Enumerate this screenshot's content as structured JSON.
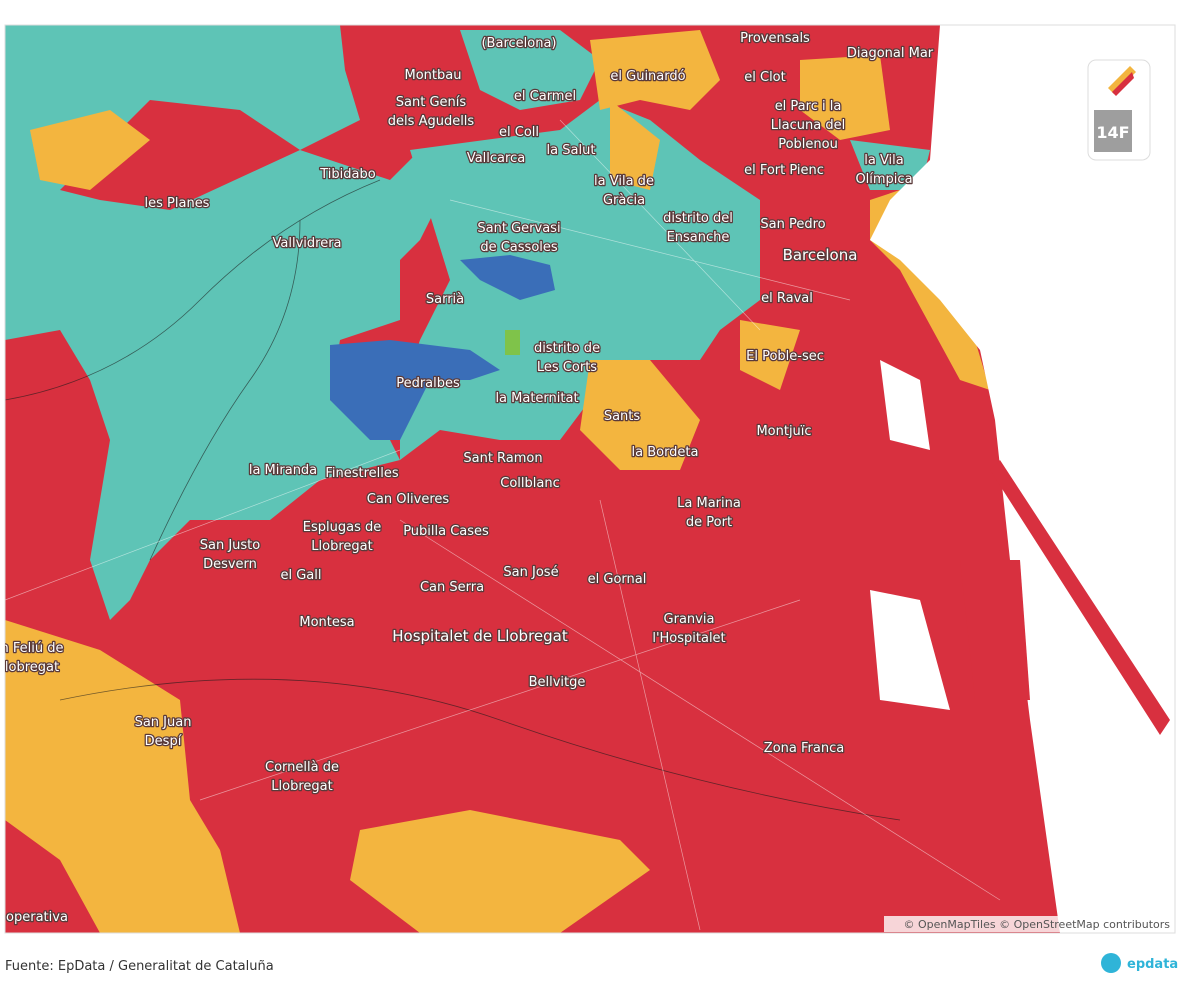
{
  "map": {
    "labels": [
      [
        "(Barcelona)"
      ],
      [
        "Provensals"
      ],
      [
        "Diagonal Mar"
      ],
      [
        "Montbau"
      ],
      [
        "el Guinardó"
      ],
      [
        "el Clot"
      ],
      [
        "el Carmel"
      ],
      [
        "Sant Genís",
        "dels Agudells"
      ],
      [
        "el Parc i la",
        "Llacuna del",
        "Poblenou"
      ],
      [
        "el Coll"
      ],
      [
        "la Salut"
      ],
      [
        "Vallcarca"
      ],
      [
        "la Vila",
        "Olímpica"
      ],
      [
        "Tibidabo"
      ],
      [
        "el Fort Pienc"
      ],
      [
        "la Vila de",
        "Gràcia"
      ],
      [
        "les Planes"
      ],
      [
        "distrito del",
        "Ensanche"
      ],
      [
        "Sant Gervasi",
        "de Cassoles"
      ],
      [
        "San Pedro"
      ],
      [
        "Vallvidrera"
      ],
      [
        "Barcelona"
      ],
      [
        "Sarrià"
      ],
      [
        "el Raval"
      ],
      [
        "distrito de",
        "Les Corts"
      ],
      [
        "El Poble-sec"
      ],
      [
        "Pedralbes"
      ],
      [
        "la Maternitat"
      ],
      [
        "Sants"
      ],
      [
        "Montjuïc"
      ],
      [
        "la Bordeta"
      ],
      [
        "Sant Ramon"
      ],
      [
        "la Miranda"
      ],
      [
        "Finestrelles"
      ],
      [
        "Collblanc"
      ],
      [
        "Can Oliveres"
      ],
      [
        "La Marina",
        "de Port"
      ],
      [
        "Esplugas de",
        "Llobregat"
      ],
      [
        "Pubilla Cases"
      ],
      [
        "San Justo",
        "Desvern"
      ],
      [
        "el Gall"
      ],
      [
        "San José"
      ],
      [
        "el Gornal"
      ],
      [
        "Can Serra"
      ],
      [
        "Montesa"
      ],
      [
        "Granvia",
        "l'Hospitalet"
      ],
      [
        "Hospitalet de Llobregat"
      ],
      [
        "n Feliú de",
        "lobregat"
      ],
      [
        "Bellvitge"
      ],
      [
        "San Juan",
        "Despí"
      ],
      [
        "Zona Franca"
      ],
      [
        "Cornellà de",
        "Llobregat"
      ],
      [
        "operativa"
      ]
    ],
    "badge": "14F",
    "attribution": "© OpenMapTiles © OpenStreetMap contributors"
  },
  "footer": {
    "source": "Fuente: EpData / Generalitat de Cataluña",
    "logo": "epdata"
  }
}
